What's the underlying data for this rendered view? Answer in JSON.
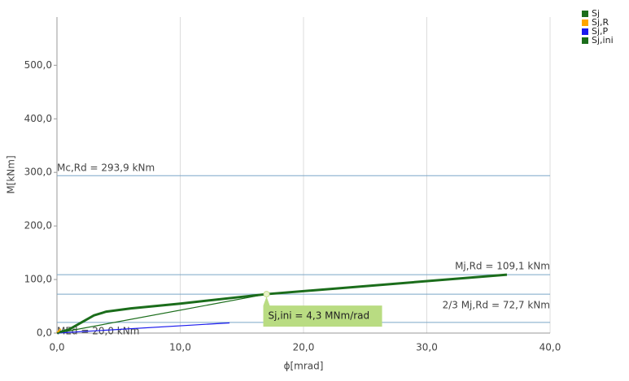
{
  "chart_data": {
    "type": "line",
    "xlabel": "ϕ[mrad]",
    "ylabel": "M[kNm]",
    "xlim": [
      0,
      40
    ],
    "ylim": [
      0,
      590
    ],
    "xticks": [
      {
        "value": 0,
        "label": "0,0"
      },
      {
        "value": 10,
        "label": "10,0"
      },
      {
        "value": 20,
        "label": "20,0"
      },
      {
        "value": 30,
        "label": "30,0"
      },
      {
        "value": 40,
        "label": "40,0"
      }
    ],
    "yticks": [
      {
        "value": 0,
        "label": "0,0"
      },
      {
        "value": 100,
        "label": "100,0"
      },
      {
        "value": 200,
        "label": "200,0"
      },
      {
        "value": 300,
        "label": "300,0"
      },
      {
        "value": 400,
        "label": "400,0"
      },
      {
        "value": 500,
        "label": "500,0"
      }
    ],
    "grid": true,
    "series": [
      {
        "name": "Sj",
        "color": "#1b6d1b",
        "x": [
          0,
          1,
          2,
          3,
          4,
          6,
          10,
          17,
          36.5
        ],
        "values": [
          0,
          7,
          20,
          33,
          40,
          46,
          55,
          72.7,
          109.1
        ]
      },
      {
        "name": "Sj,R",
        "color": "#ffa500",
        "x": [
          0,
          0.3
        ],
        "values": [
          0,
          8
        ]
      },
      {
        "name": "Sj,P",
        "color": "#1a1aee",
        "x": [
          0,
          14
        ],
        "values": [
          0,
          19
        ]
      },
      {
        "name": "Sj,ini",
        "color": "#1b6d1b",
        "x": [
          0,
          17
        ],
        "values": [
          0,
          72.7
        ]
      }
    ],
    "reference_lines": [
      {
        "label": "Mc,Rd = 293,9 kNm",
        "value": 293.9
      },
      {
        "label": "Mj,Rd = 109,1 kNm",
        "value": 109.1
      },
      {
        "label": "2/3 Mj,Rd = 72,7 kNm",
        "value": 72.7
      },
      {
        "label": "MEd = 20,0 kNm",
        "value": 20
      }
    ],
    "annotation": {
      "text": "Sj,ini = 4,3 MNm/rad",
      "x": 17,
      "y": 72.7
    }
  }
}
